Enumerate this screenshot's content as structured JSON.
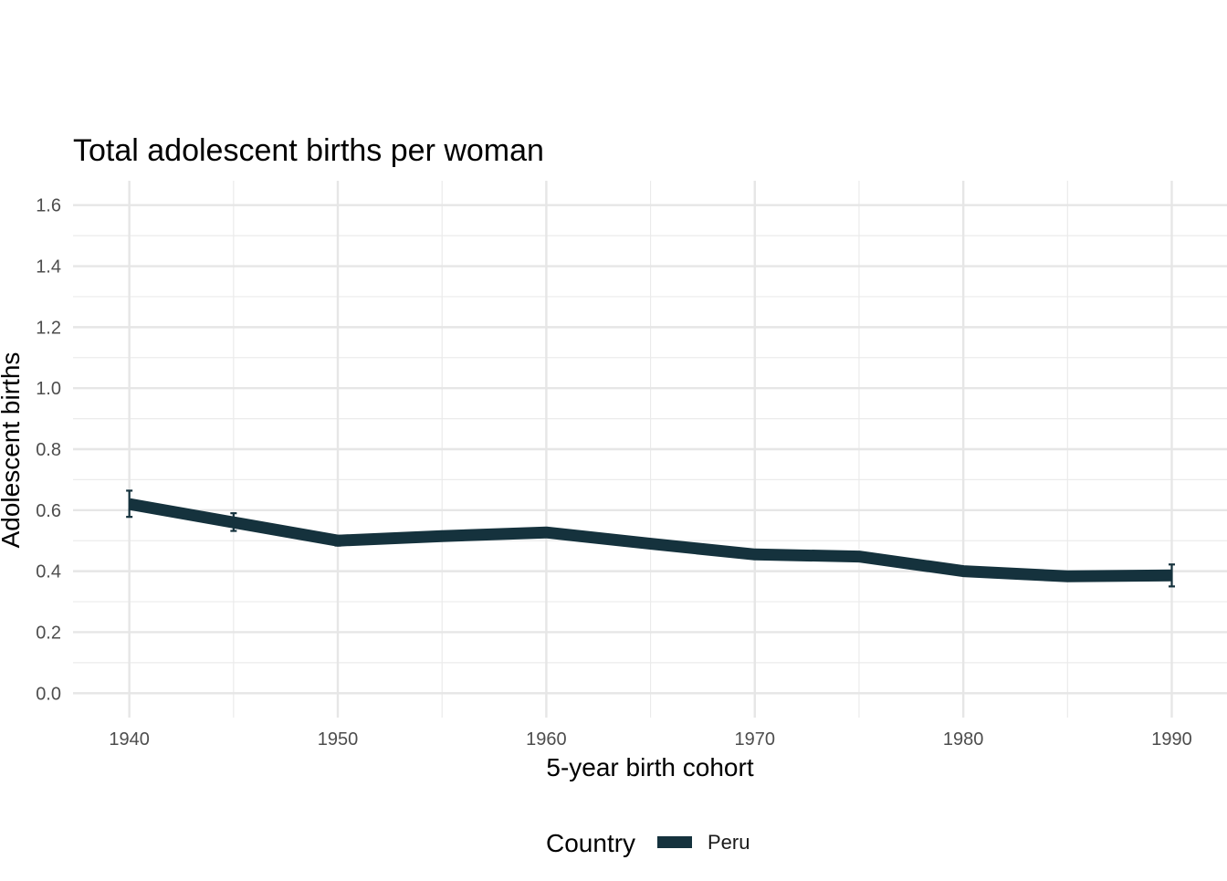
{
  "chart_data": {
    "type": "line",
    "title": "Total adolescent births per woman",
    "xlabel": "5-year birth cohort",
    "ylabel": "Adolescent births",
    "x": [
      1940,
      1945,
      1950,
      1955,
      1960,
      1965,
      1970,
      1975,
      1980,
      1985,
      1990
    ],
    "xlim": [
      1937.3,
      1990
    ],
    "ylim": [
      -0.08,
      1.68
    ],
    "x_ticks": [
      1940,
      1950,
      1960,
      1970,
      1980,
      1990
    ],
    "x_tick_labels": [
      "1940",
      "1950",
      "1960",
      "1970",
      "1980",
      "1990"
    ],
    "y_ticks": [
      0.0,
      0.2,
      0.4,
      0.6,
      0.8,
      1.0,
      1.2,
      1.4,
      1.6
    ],
    "y_tick_labels": [
      "0.0",
      "0.2",
      "0.4",
      "0.6",
      "0.8",
      "1.0",
      "1.2",
      "1.4",
      "1.6"
    ],
    "grid": true,
    "legend_position": "bottom",
    "legend_title": "Country",
    "series": [
      {
        "name": "Peru",
        "color": "#15323d",
        "values": [
          0.62,
          0.56,
          0.5,
          0.515,
          0.527,
          0.49,
          0.455,
          0.448,
          0.4,
          0.383,
          0.386
        ],
        "error_bars": [
          [
            0.578,
            0.664
          ],
          [
            0.532,
            0.59
          ],
          [
            0.484,
            0.516
          ],
          [
            0.5,
            0.53
          ],
          null,
          null,
          null,
          null,
          null,
          null,
          [
            0.35,
            0.422
          ]
        ]
      }
    ]
  }
}
